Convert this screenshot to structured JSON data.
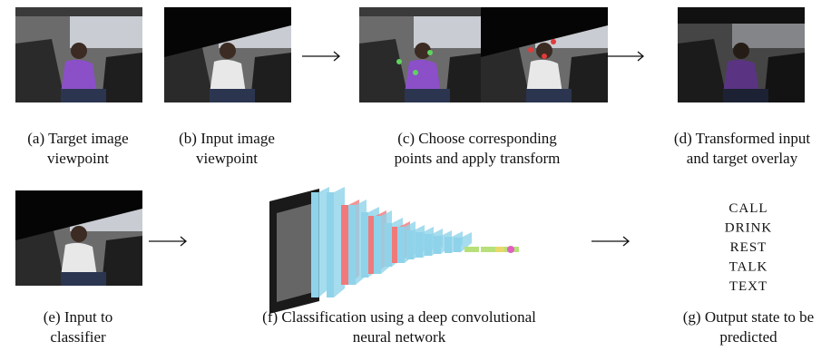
{
  "panels": [
    {
      "caption": [
        "(a) Target image",
        "viewpoint"
      ]
    },
    {
      "caption": [
        "(b) Input image",
        "viewpoint"
      ]
    },
    {
      "caption": [
        "(c) Choose corresponding",
        "points and apply transform"
      ]
    },
    {
      "caption": [
        "(d) Transformed input",
        "and target overlay"
      ]
    },
    {
      "caption": [
        "(e) Input to",
        "classifier"
      ]
    },
    {
      "caption": [
        "(f) Classification using a deep convolutional",
        "neural network"
      ]
    },
    {
      "caption": [
        "(g) Output state to be",
        "predicted"
      ]
    }
  ],
  "output_states": [
    "CALL",
    "DRINK",
    "REST",
    "TALK",
    "TEXT"
  ]
}
